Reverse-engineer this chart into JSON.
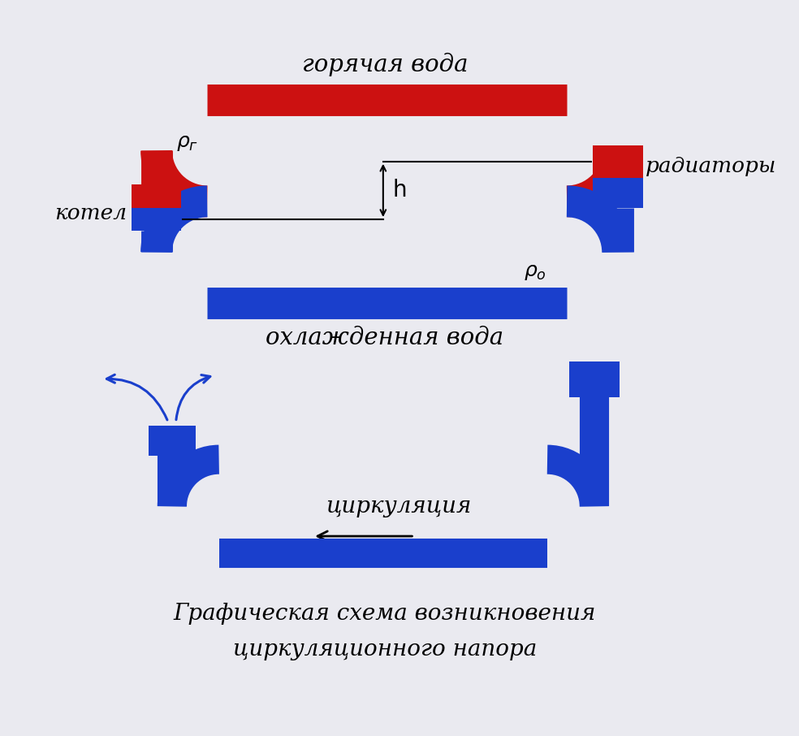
{
  "bg_color": "#eaeaf0",
  "red_color": "#cc1111",
  "blue_color": "#1a3fcc",
  "blue_dark": "#1a3fcc",
  "black_color": "#111111",
  "title": "Графическая схема возникновения\nциркуляционного напора",
  "label_hot": "горячая вода",
  "label_cold": "охлажденная вода",
  "label_boiler": "котел",
  "label_radiators": "радиаторы",
  "label_rho_g": "ρг",
  "label_rho_o": "ρо",
  "label_h": "h",
  "label_circ": "циркуляция"
}
